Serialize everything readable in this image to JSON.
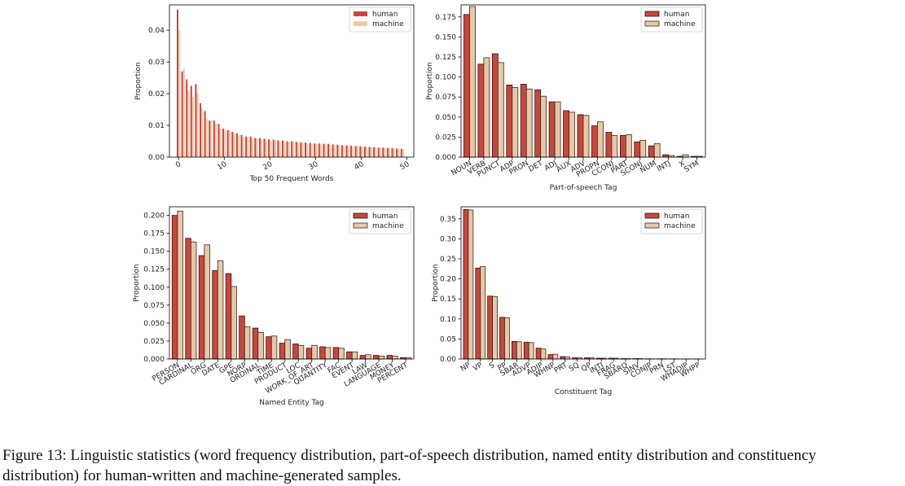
{
  "caption": "Figure 13:  Linguistic statistics (word frequency distribution, part-of-speech distribution, named entity distribution and constituency distribution) for human-written and machine-generated samples.",
  "colors": {
    "human": "#c8473d",
    "human_edge": "#3a0c08",
    "machine_light": "#f5c9a5",
    "machine": "#e6c8a8",
    "machine_edge": "#3a2a1a"
  },
  "chart_data": [
    {
      "type": "bar",
      "xlabel": "Top 50 Frequent Words",
      "ylabel": "Proportion",
      "ylim": [
        0,
        0.048
      ],
      "yticks": [
        0,
        0.01,
        0.02,
        0.03,
        0.04
      ],
      "ytick_labels": [
        "0.00",
        "0.01",
        "0.02",
        "0.03",
        "0.04"
      ],
      "xticks": [
        0,
        10,
        20,
        30,
        40,
        50
      ],
      "xtick_labels": [
        "0",
        "10",
        "20",
        "30",
        "40",
        "50"
      ],
      "legend": "top-right",
      "x": [
        0,
        1,
        2,
        3,
        4,
        5,
        6,
        7,
        8,
        9,
        10,
        11,
        12,
        13,
        14,
        15,
        16,
        17,
        18,
        19,
        20,
        21,
        22,
        23,
        24,
        25,
        26,
        27,
        28,
        29,
        30,
        31,
        32,
        33,
        34,
        35,
        36,
        37,
        38,
        39,
        40,
        41,
        42,
        43,
        44,
        45,
        46,
        47,
        48,
        49
      ],
      "series": [
        {
          "name": "human",
          "values": [
            0.0465,
            0.027,
            0.0245,
            0.0225,
            0.023,
            0.017,
            0.0145,
            0.0115,
            0.0115,
            0.0105,
            0.009,
            0.0085,
            0.008,
            0.0075,
            0.007,
            0.0065,
            0.0065,
            0.006,
            0.006,
            0.0058,
            0.0056,
            0.0055,
            0.0053,
            0.0052,
            0.005,
            0.005,
            0.0048,
            0.0047,
            0.0046,
            0.0045,
            0.0043,
            0.0043,
            0.0042,
            0.0042,
            0.004,
            0.0039,
            0.0038,
            0.0037,
            0.0036,
            0.0035,
            0.0034,
            0.0033,
            0.0032,
            0.0031,
            0.003,
            0.003,
            0.0029,
            0.0028,
            0.0027,
            0.0026
          ]
        },
        {
          "name": "machine",
          "values": [
            0.04,
            0.028,
            0.021,
            0.019,
            0.02,
            0.015,
            0.012,
            0.0115,
            0.0105,
            0.009,
            0.0085,
            0.0085,
            0.0075,
            0.007,
            0.0065,
            0.0065,
            0.006,
            0.0058,
            0.0055,
            0.0055,
            0.0053,
            0.0052,
            0.005,
            0.005,
            0.0048,
            0.0047,
            0.0046,
            0.0045,
            0.0044,
            0.0043,
            0.0042,
            0.0041,
            0.004,
            0.0039,
            0.0038,
            0.0037,
            0.0036,
            0.0035,
            0.0034,
            0.0034,
            0.0033,
            0.0032,
            0.0031,
            0.003,
            0.003,
            0.0029,
            0.0028,
            0.0027,
            0.0027,
            0.0026
          ]
        }
      ]
    },
    {
      "type": "bar",
      "xlabel": "Part-of-speech Tag",
      "ylabel": "Proportion",
      "ylim": [
        0,
        0.19
      ],
      "yticks": [
        0,
        0.025,
        0.05,
        0.075,
        0.1,
        0.125,
        0.15,
        0.175
      ],
      "ytick_labels": [
        "0.000",
        "0.025",
        "0.050",
        "0.075",
        "0.100",
        "0.125",
        "0.150",
        "0.175"
      ],
      "legend": "top-right",
      "categories": [
        "NOUN",
        "VERB",
        "PUNCT",
        "ADP",
        "PRON",
        "DET",
        "ADJ",
        "AUX",
        "ADV",
        "PROPN",
        "CCONJ",
        "PART",
        "SCONJ",
        "NUM",
        "INTJ",
        "X",
        "SYM"
      ],
      "series": [
        {
          "name": "human",
          "values": [
            0.178,
            0.116,
            0.129,
            0.09,
            0.091,
            0.084,
            0.069,
            0.058,
            0.053,
            0.039,
            0.031,
            0.027,
            0.019,
            0.014,
            0.003,
            0.001,
            0.001
          ]
        },
        {
          "name": "machine",
          "values": [
            0.188,
            0.124,
            0.118,
            0.087,
            0.085,
            0.076,
            0.069,
            0.056,
            0.052,
            0.044,
            0.027,
            0.028,
            0.021,
            0.017,
            0.002,
            0.003,
            0.001
          ]
        }
      ]
    },
    {
      "type": "bar",
      "xlabel": "Named Entity Tag",
      "ylabel": "Proportion",
      "ylim": [
        0,
        0.212
      ],
      "yticks": [
        0,
        0.025,
        0.05,
        0.075,
        0.1,
        0.125,
        0.15,
        0.175,
        0.2
      ],
      "ytick_labels": [
        "0.000",
        "0.025",
        "0.050",
        "0.075",
        "0.100",
        "0.125",
        "0.150",
        "0.175",
        "0.200"
      ],
      "legend": "top-right",
      "categories": [
        "PERSON",
        "CARDINAL",
        "ORG",
        "DATE",
        "GPE",
        "NORP",
        "ORDINAL",
        "TIME",
        "PRODUCT",
        "LOC",
        "WORK_OF_ART",
        "QUANTITY",
        "FAC",
        "EVENT",
        "LAW",
        "LANGUAGE",
        "MONEY",
        "PERCENT"
      ],
      "series": [
        {
          "name": "human",
          "values": [
            0.2,
            0.168,
            0.144,
            0.123,
            0.119,
            0.06,
            0.043,
            0.031,
            0.022,
            0.021,
            0.015,
            0.017,
            0.016,
            0.01,
            0.005,
            0.005,
            0.005,
            0.002
          ]
        },
        {
          "name": "machine",
          "values": [
            0.206,
            0.163,
            0.159,
            0.137,
            0.101,
            0.045,
            0.037,
            0.032,
            0.027,
            0.019,
            0.019,
            0.016,
            0.015,
            0.01,
            0.006,
            0.004,
            0.004,
            0.002
          ]
        }
      ]
    },
    {
      "type": "bar",
      "xlabel": "Constituent Tag",
      "ylabel": "Proportion",
      "ylim": [
        0,
        0.38
      ],
      "yticks": [
        0,
        0.05,
        0.1,
        0.15,
        0.2,
        0.25,
        0.3,
        0.35
      ],
      "ytick_labels": [
        "0.00",
        "0.05",
        "0.10",
        "0.15",
        "0.20",
        "0.25",
        "0.30",
        "0.35"
      ],
      "legend": "top-right",
      "categories": [
        "NP",
        "VP",
        "S",
        "PP",
        "SBAR",
        "ADVP",
        "ADJP",
        "WHNP",
        "PRT",
        "SQ",
        "QP",
        "INTJ",
        "FRAG",
        "SBARQ",
        "SINV",
        "CONJP",
        "PRN",
        "LST",
        "WHADJP",
        "WHPP"
      ],
      "series": [
        {
          "name": "human",
          "values": [
            0.373,
            0.227,
            0.157,
            0.104,
            0.044,
            0.042,
            0.027,
            0.011,
            0.006,
            0.003,
            0.003,
            0.002,
            0.002,
            0.001,
            0.001,
            0.0005,
            0.0005,
            0.0003,
            0.0002,
            0.0001
          ]
        },
        {
          "name": "machine",
          "values": [
            0.372,
            0.231,
            0.156,
            0.103,
            0.043,
            0.041,
            0.025,
            0.012,
            0.005,
            0.003,
            0.003,
            0.002,
            0.002,
            0.001,
            0.001,
            0.0005,
            0.0005,
            0.0003,
            0.0002,
            0.0001
          ]
        }
      ]
    }
  ]
}
